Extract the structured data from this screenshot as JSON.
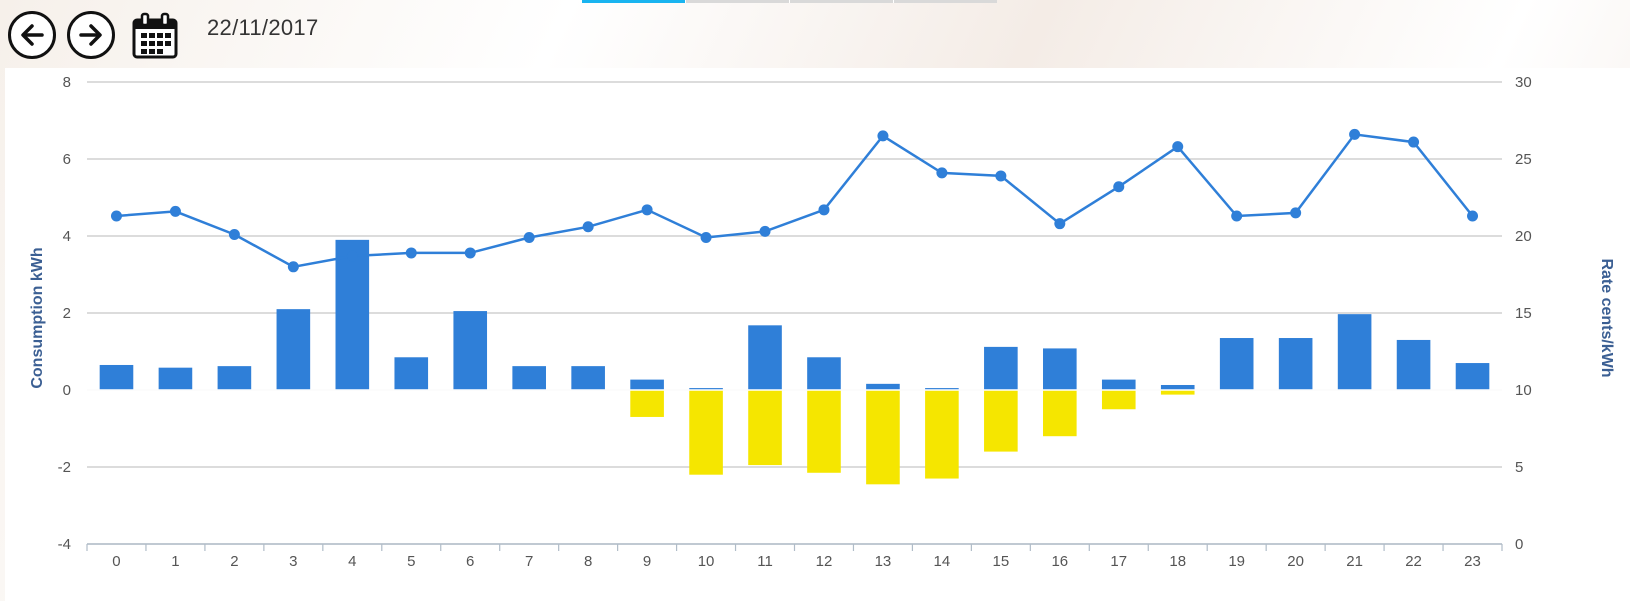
{
  "toolbar": {
    "back_icon": "arrow-left-icon",
    "forward_icon": "arrow-right-icon",
    "calendar_icon": "calendar-icon",
    "date": "22/11/2017"
  },
  "colors": {
    "consumption": "#2f7fd8",
    "export": "#f5e600",
    "rate": "#2f7fd8",
    "grid": "#c8c8c8",
    "tab_active": "#19b4f0"
  },
  "chart_data": {
    "type": "bar",
    "categories": [
      "0",
      "1",
      "2",
      "3",
      "4",
      "5",
      "6",
      "7",
      "8",
      "9",
      "10",
      "11",
      "12",
      "13",
      "14",
      "15",
      "16",
      "17",
      "18",
      "19",
      "20",
      "21",
      "22",
      "23"
    ],
    "left_axis": {
      "label": "Consumption kWh",
      "min": -4,
      "max": 8,
      "ticks": [
        "-4",
        "-2",
        "0",
        "2",
        "4",
        "6",
        "8"
      ]
    },
    "right_axis": {
      "label": "Rate cents/kWh",
      "min": 0,
      "max": 30,
      "ticks": [
        "0",
        "5",
        "10",
        "15",
        "20",
        "25",
        "30"
      ]
    },
    "grid": true,
    "series": [
      {
        "kind": "bar",
        "axis": "left",
        "values": [
          0.65,
          0.58,
          0.62,
          2.1,
          3.9,
          0.85,
          2.05,
          0.62,
          0.62,
          0.27,
          0.05,
          1.68,
          0.85,
          0.16,
          0.05,
          1.12,
          1.08,
          0.27,
          0.13,
          1.35,
          1.35,
          1.97,
          1.3,
          0.7
        ]
      },
      {
        "kind": "bar",
        "axis": "left",
        "values": [
          0,
          0,
          0,
          0,
          0,
          0,
          0,
          0,
          0,
          -0.7,
          -2.2,
          -1.95,
          -2.15,
          -2.45,
          -2.3,
          -1.6,
          -1.2,
          -0.5,
          -0.12,
          0,
          0,
          0,
          0,
          0
        ]
      },
      {
        "kind": "line",
        "axis": "right",
        "values": [
          21.3,
          21.6,
          20.1,
          18.0,
          18.7,
          18.9,
          18.9,
          19.9,
          20.6,
          21.7,
          19.9,
          20.3,
          21.7,
          26.5,
          24.1,
          23.9,
          20.8,
          23.2,
          25.8,
          21.3,
          21.5,
          26.6,
          26.1,
          21.3
        ]
      }
    ]
  }
}
